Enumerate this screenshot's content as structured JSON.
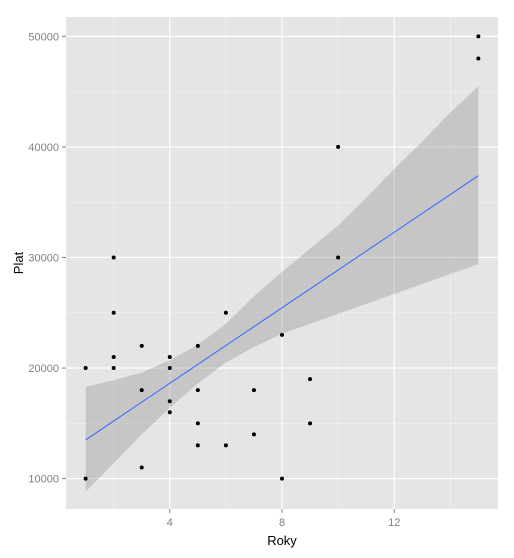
{
  "chart_data": {
    "type": "scatter",
    "title": "",
    "xlabel": "Roky",
    "ylabel": "Plat",
    "xlim": [
      0.3,
      15.7
    ],
    "ylim": [
      7250,
      51750
    ],
    "x_ticks": [
      4,
      8,
      12
    ],
    "x_tick_labels": [
      "4",
      "8",
      "12"
    ],
    "y_ticks": [
      10000,
      20000,
      30000,
      40000,
      50000
    ],
    "y_tick_labels": [
      "10000",
      "20000",
      "30000",
      "40000",
      "50000"
    ],
    "grid": true,
    "legend": "none",
    "points": [
      {
        "x": 1,
        "y": 10000
      },
      {
        "x": 1,
        "y": 20000
      },
      {
        "x": 2,
        "y": 20000
      },
      {
        "x": 2,
        "y": 21000
      },
      {
        "x": 2,
        "y": 25000
      },
      {
        "x": 2,
        "y": 30000
      },
      {
        "x": 3,
        "y": 11000
      },
      {
        "x": 3,
        "y": 18000
      },
      {
        "x": 3,
        "y": 22000
      },
      {
        "x": 4,
        "y": 16000
      },
      {
        "x": 4,
        "y": 17000
      },
      {
        "x": 4,
        "y": 20000
      },
      {
        "x": 4,
        "y": 21000
      },
      {
        "x": 5,
        "y": 13000
      },
      {
        "x": 5,
        "y": 15000
      },
      {
        "x": 5,
        "y": 18000
      },
      {
        "x": 5,
        "y": 22000
      },
      {
        "x": 6,
        "y": 13000
      },
      {
        "x": 6,
        "y": 25000
      },
      {
        "x": 7,
        "y": 14000
      },
      {
        "x": 7,
        "y": 18000
      },
      {
        "x": 8,
        "y": 10000
      },
      {
        "x": 8,
        "y": 23000
      },
      {
        "x": 9,
        "y": 15000
      },
      {
        "x": 9,
        "y": 19000
      },
      {
        "x": 10,
        "y": 30000
      },
      {
        "x": 10,
        "y": 40000
      },
      {
        "x": 15,
        "y": 48000
      },
      {
        "x": 15,
        "y": 50000
      }
    ],
    "fit_line": {
      "method": "linear",
      "x": [
        1,
        15
      ],
      "y": [
        13500,
        37400
      ]
    },
    "confidence_band": {
      "x": [
        1,
        2,
        3,
        4,
        5,
        6,
        7,
        8,
        9,
        10,
        11,
        12,
        13,
        14,
        15
      ],
      "lower": [
        8800,
        11400,
        14000,
        16400,
        18600,
        20500,
        21900,
        23100,
        24000,
        24900,
        25800,
        26700,
        27600,
        28500,
        29400
      ],
      "upper": [
        18300,
        18900,
        19600,
        20700,
        22100,
        24000,
        26500,
        28700,
        30800,
        32900,
        35400,
        38000,
        40500,
        43100,
        45500
      ]
    },
    "colors": {
      "panel": "#e5e5e5",
      "grid_major": "#ffffff",
      "grid_minor": "#f2f2f2",
      "point": "#000000",
      "line": "#3366ff",
      "band": "#999999",
      "tick_label": "#7f7f7f"
    }
  }
}
